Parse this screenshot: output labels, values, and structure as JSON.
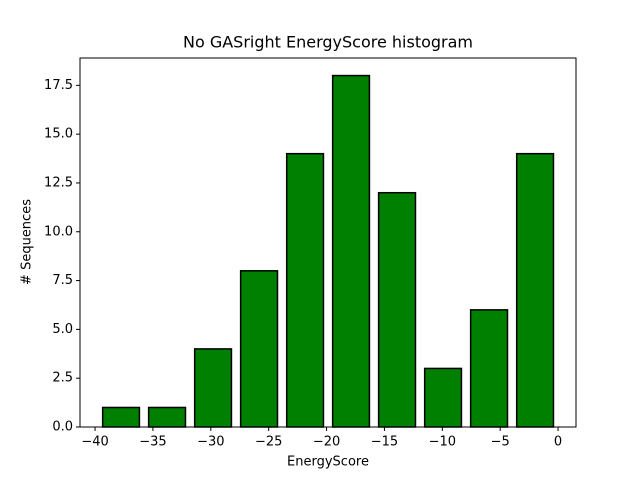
{
  "chart_data": {
    "type": "histogram",
    "title": "No GASright EnergyScore histogram",
    "x_label": "EnergyScore",
    "y_label": "# Sequences",
    "bins": [
      -39.74,
      -35.77,
      -31.79,
      -27.82,
      -23.84,
      -19.87,
      -15.9,
      -11.92,
      -7.95,
      -3.97,
      0
    ],
    "values": [
      1,
      1,
      4,
      8,
      14,
      18,
      12,
      3,
      6,
      14
    ],
    "color": "#008000",
    "edgecolor": "#000000",
    "xlim": [
      -41.3,
      1.55
    ],
    "ylim": [
      0,
      18.9
    ],
    "xticks": [
      {
        "value": -40,
        "label": "−40"
      },
      {
        "value": -35,
        "label": "−35"
      },
      {
        "value": -30,
        "label": "−30"
      },
      {
        "value": -25,
        "label": "−25"
      },
      {
        "value": -20,
        "label": "−20"
      },
      {
        "value": -15,
        "label": "−15"
      },
      {
        "value": -10,
        "label": "−10"
      },
      {
        "value": -5,
        "label": "−5"
      },
      0
    ],
    "yticks": [
      {
        "value": 0,
        "label": "0.0"
      },
      2.5,
      {
        "value": 5,
        "label": "5.0"
      },
      7.5,
      {
        "value": 10,
        "label": "10.0"
      },
      12.5,
      {
        "value": 15,
        "label": "15.0"
      },
      17.5
    ],
    "grid": false
  }
}
